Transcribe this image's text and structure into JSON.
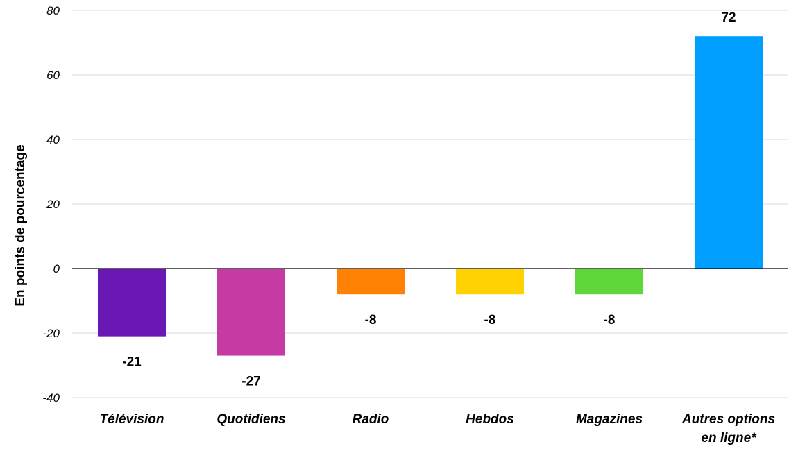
{
  "chart_data": {
    "type": "bar",
    "categories": [
      [
        "Télévision"
      ],
      [
        "Quotidiens"
      ],
      [
        "Radio"
      ],
      [
        "Hebdos"
      ],
      [
        "Magazines"
      ],
      [
        "Autres options",
        "en ligne*"
      ]
    ],
    "values": [
      -21,
      -27,
      -8,
      -8,
      -8,
      72
    ],
    "data_labels": [
      "-21",
      "-27",
      "-8",
      "-8",
      "-8",
      "72"
    ],
    "colors": [
      "#6a17b4",
      "#c63aa4",
      "#ff8205",
      "#ffd100",
      "#5fd63a",
      "#009eff"
    ],
    "title": "",
    "xlabel": "",
    "ylabel": "En points de pourcentage",
    "ylim": [
      -40,
      80
    ],
    "yticks": [
      80,
      60,
      40,
      20,
      0,
      -20,
      -40
    ],
    "grid": true,
    "gridColor": "#d9d9d9",
    "axisColor": "#000000"
  }
}
